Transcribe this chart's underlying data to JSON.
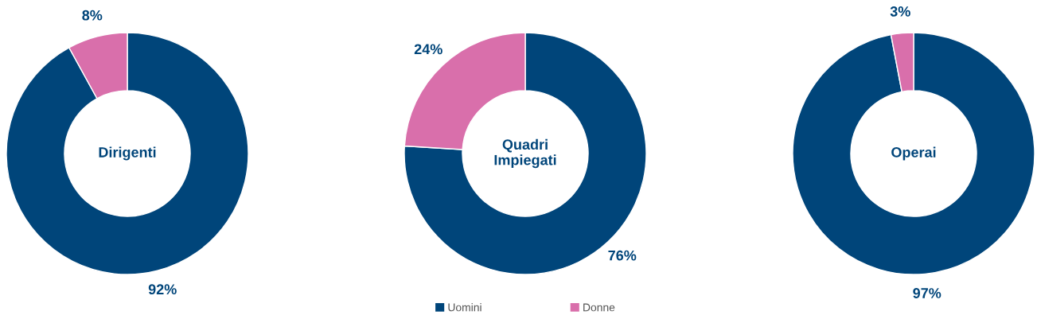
{
  "chart_data": [
    {
      "type": "donut",
      "title": "Dirigenti",
      "categories": [
        null,
        null
      ],
      "values": [
        92,
        8
      ],
      "colors": [
        "#00457a",
        "#d96fab"
      ],
      "value_labels": [
        "92%",
        "8%"
      ],
      "legend": false
    },
    {
      "type": "donut",
      "title": "Quadri\nImpiegati",
      "categories": [
        "Uomini",
        "Donne"
      ],
      "values": [
        76,
        24
      ],
      "colors": [
        "#00457a",
        "#d96fab"
      ],
      "value_labels": [
        "76%",
        "24%"
      ],
      "legend": "bottom"
    },
    {
      "type": "donut",
      "title": "Operai",
      "categories": [
        null,
        null
      ],
      "values": [
        97,
        3
      ],
      "colors": [
        "#00457a",
        "#d96fab"
      ],
      "value_labels": [
        "97%",
        "3%"
      ],
      "legend": false
    }
  ]
}
